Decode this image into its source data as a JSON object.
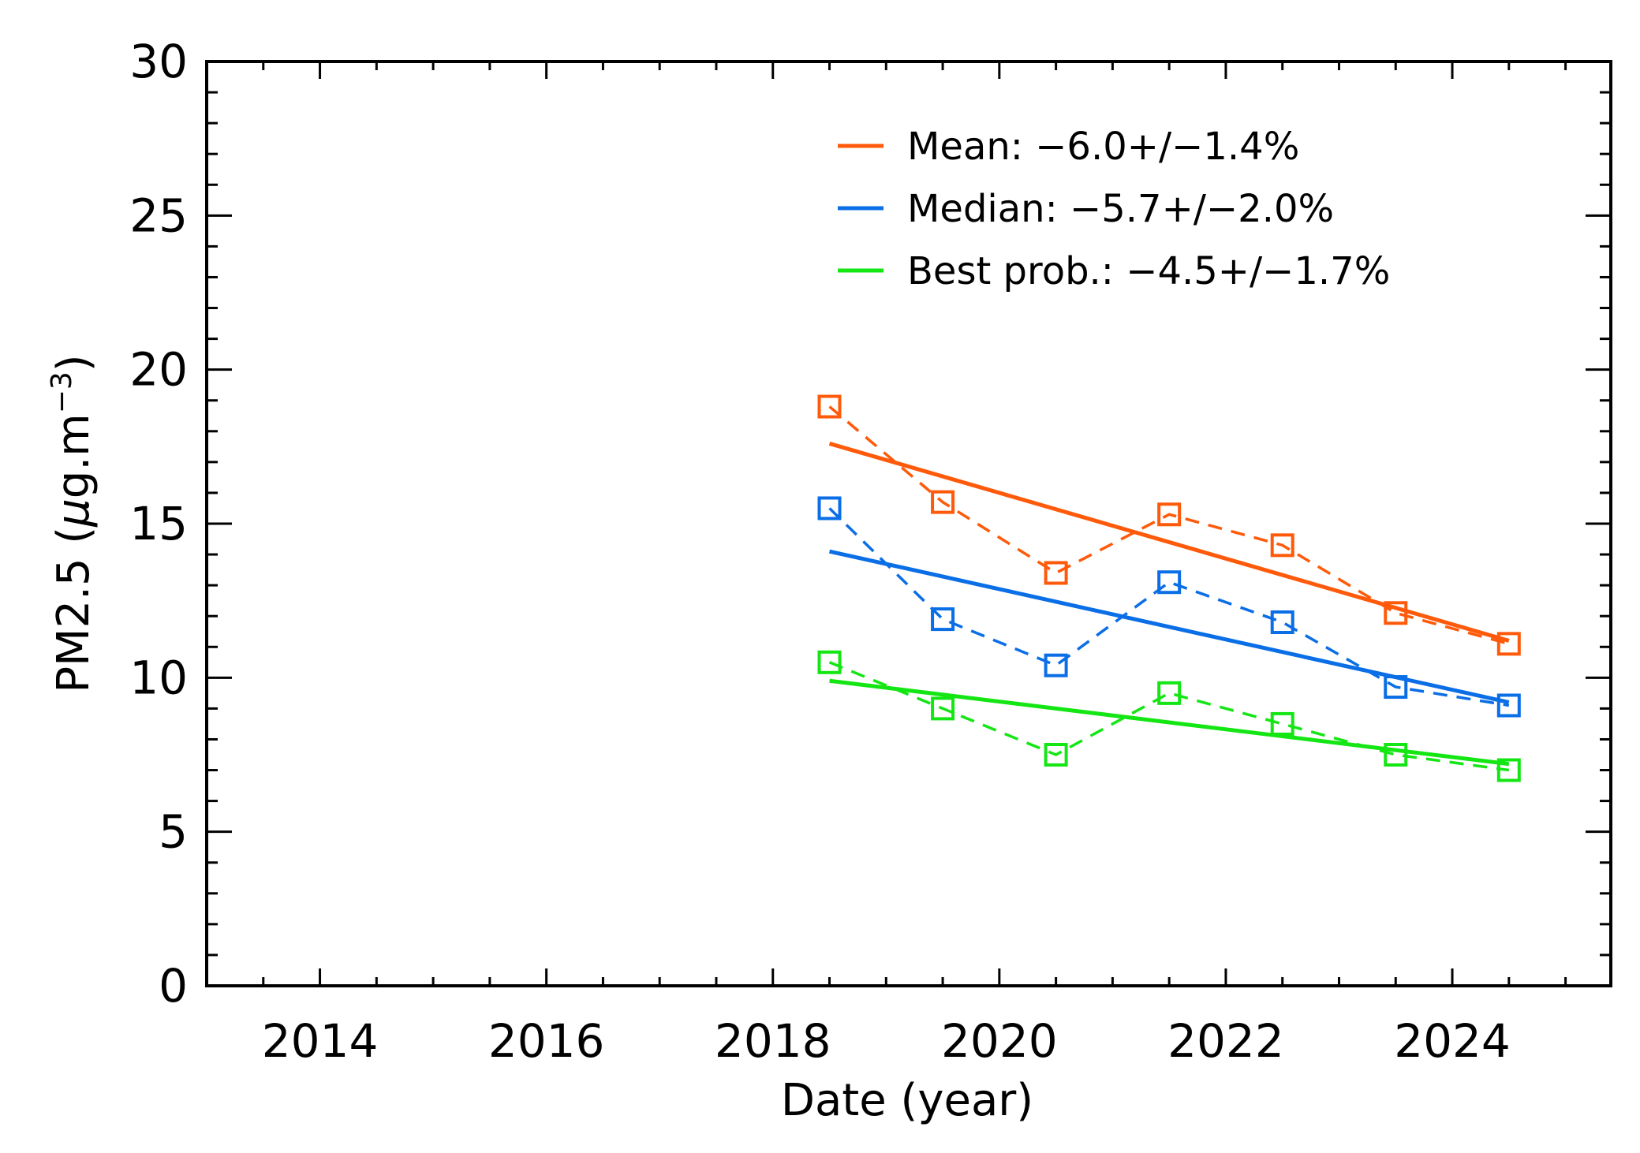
{
  "chart_data": {
    "type": "line",
    "xlabel": "Date (year)",
    "ylabel_main": "PM2.5 (",
    "ylabel_mu": "μ",
    "ylabel_unit": "g.m",
    "ylabel_exp": "−3",
    "ylabel_close": ")",
    "xlim": [
      2013,
      2025.4
    ],
    "ylim": [
      0,
      30
    ],
    "xticks": [
      2014,
      2016,
      2018,
      2020,
      2022,
      2024
    ],
    "xtick_labels": [
      "2014",
      "2016",
      "2018",
      "2020",
      "2022",
      "2024"
    ],
    "yticks": [
      0,
      5,
      10,
      15,
      20,
      25,
      30
    ],
    "ytick_labels": [
      "0",
      "5",
      "10",
      "15",
      "20",
      "25",
      "30"
    ],
    "legend_position": "top-right",
    "x": [
      2018.5,
      2019.5,
      2020.5,
      2021.5,
      2022.5,
      2023.5,
      2024.5
    ],
    "series": [
      {
        "name": "Mean",
        "legend_label": "Mean: −6.0+/−1.4%",
        "color": "#ff5a0a",
        "values": [
          18.8,
          15.7,
          13.4,
          15.3,
          14.3,
          12.1,
          11.1
        ],
        "trend": [
          17.6,
          11.2
        ]
      },
      {
        "name": "Median",
        "legend_label": "Median: −5.7+/−2.0%",
        "color": "#0a6ee6",
        "values": [
          15.5,
          11.9,
          10.4,
          13.1,
          11.8,
          9.7,
          9.1
        ],
        "trend": [
          14.1,
          9.2
        ]
      },
      {
        "name": "Best prob.",
        "legend_label": "Best prob.: −4.5+/−1.7%",
        "color": "#14e614",
        "values": [
          10.5,
          9.0,
          7.5,
          9.5,
          8.5,
          7.5,
          7.0
        ],
        "trend": [
          9.9,
          7.2
        ]
      }
    ]
  }
}
